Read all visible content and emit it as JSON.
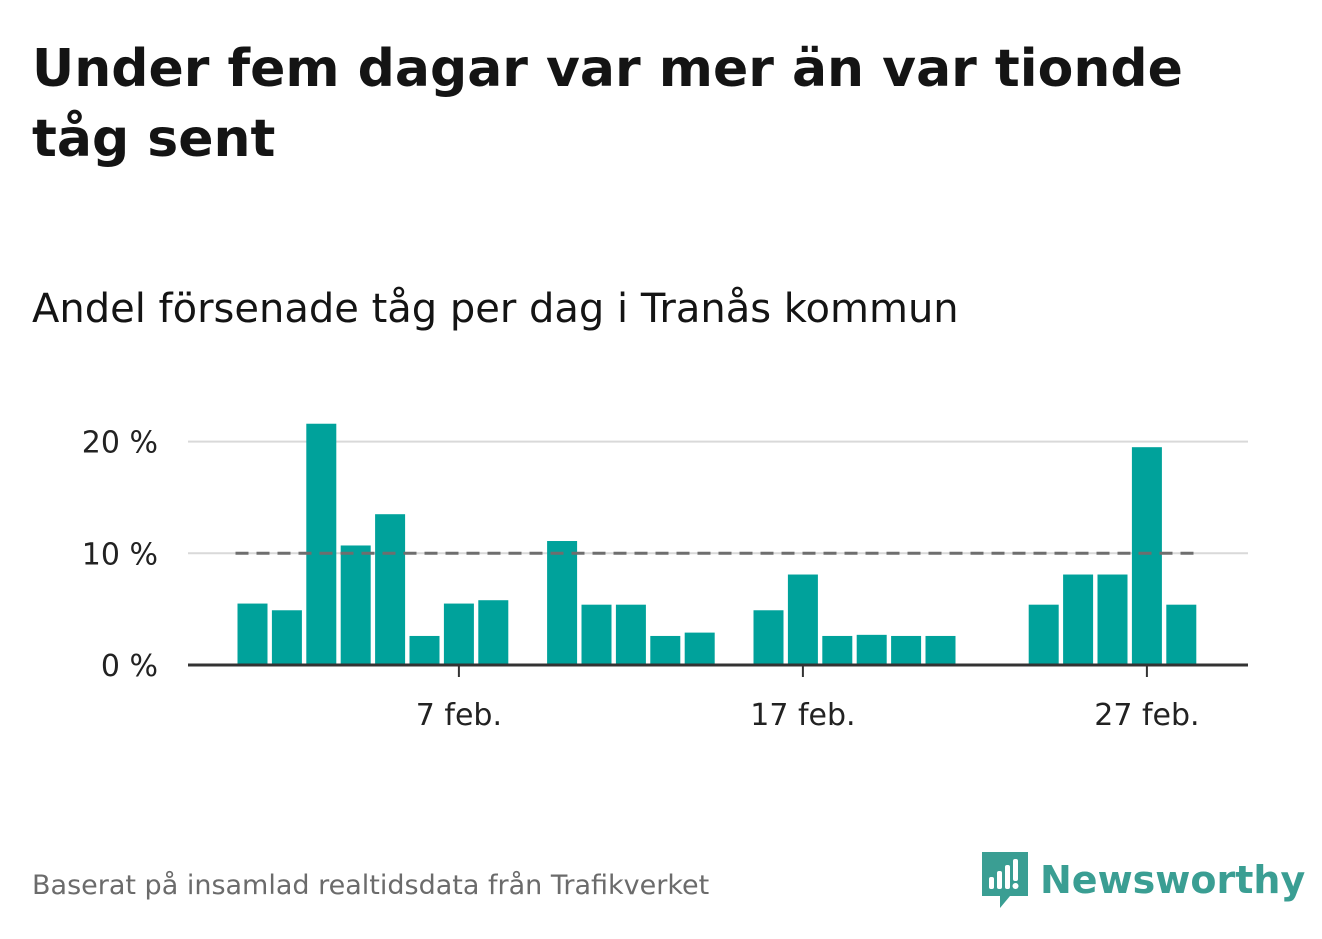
{
  "title": "Under fem dagar var mer än var tionde tåg sent",
  "subtitle": "Andel försenade tåg per dag i Tranås kommun",
  "footer": "Baserat på insamlad realtidsdata från Trafikverket",
  "logo": {
    "name": "Newsworthy",
    "icon": "newsworthy-logo-icon",
    "color": "#3a9e93"
  },
  "colors": {
    "bar": "#00a29b",
    "reference_line": "#6e6e6e",
    "grid": "#d9d9d9",
    "axis": "#333333"
  },
  "chart_data": {
    "type": "bar",
    "x_unit": "day (February)",
    "x": [
      1,
      2,
      3,
      4,
      5,
      6,
      7,
      8,
      9,
      10,
      11,
      12,
      13,
      14,
      15,
      16,
      17,
      18,
      19,
      20,
      21,
      22,
      23,
      24,
      25,
      26,
      27,
      28
    ],
    "values": [
      5.5,
      4.9,
      21.6,
      10.7,
      13.5,
      2.6,
      5.5,
      5.8,
      null,
      11.1,
      5.4,
      5.4,
      2.6,
      2.9,
      null,
      4.9,
      8.1,
      2.6,
      2.7,
      2.6,
      2.6,
      null,
      null,
      5.4,
      8.1,
      8.1,
      19.5,
      5.4
    ],
    "ylim": [
      0,
      22
    ],
    "y_ticks": [
      {
        "value": 0,
        "label": "0 %"
      },
      {
        "value": 10,
        "label": "10 %"
      },
      {
        "value": 20,
        "label": "20 %"
      }
    ],
    "x_ticks": [
      {
        "value": 7,
        "label": "7 feb."
      },
      {
        "value": 17,
        "label": "17 feb."
      },
      {
        "value": 27,
        "label": "27 feb."
      }
    ],
    "reference_line": {
      "value": 10,
      "style": "dashed"
    },
    "grid": true,
    "xlabel": "",
    "ylabel": ""
  }
}
